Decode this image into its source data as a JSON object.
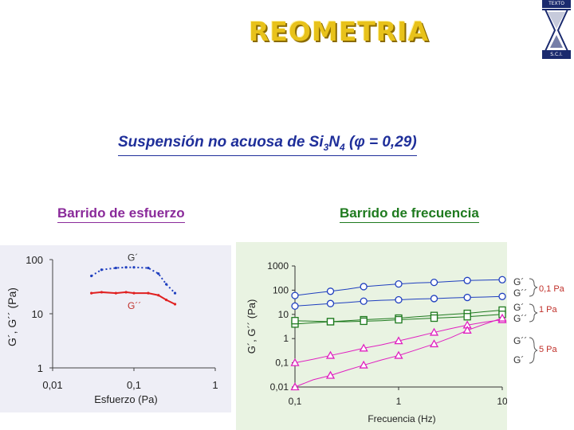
{
  "slide": {
    "title": "REOMETRIA",
    "logo_top": "TEXTO",
    "logo_bottom": "S.C.I.",
    "subtitle_main": "Suspensión no acuosa de Si",
    "subtitle_sub3": "3",
    "subtitle_n": "N",
    "subtitle_sub4": "4",
    "subtitle_tail": " (φ = 0,29)",
    "section_left": "Barrido de esfuerzo",
    "section_right": "Barrido de frecuencia"
  },
  "colors": {
    "title": "#e8c21a",
    "blue": "#1f3fbf",
    "red": "#e02020",
    "green": "#1e7a1e",
    "magenta": "#e020c0",
    "black": "#000000",
    "label_red": "#c0302a"
  },
  "chart_data": [
    {
      "type": "scatter",
      "xlabel": "Esfuerzo (Pa)",
      "ylabel": "G´, G´´ (Pa)",
      "xscale": "log",
      "yscale": "log",
      "xlim": [
        0.01,
        1
      ],
      "ylim": [
        1,
        100
      ],
      "x_ticks": [
        "0,01",
        "0,1",
        "1"
      ],
      "y_ticks": [
        "1",
        "10",
        "100"
      ],
      "series": [
        {
          "name": "G´",
          "x": [
            0.03,
            0.04,
            0.06,
            0.08,
            0.1,
            0.15,
            0.2,
            0.25,
            0.32
          ],
          "y": [
            50,
            65,
            70,
            72,
            72,
            70,
            55,
            35,
            24
          ]
        },
        {
          "name": "G´´",
          "x": [
            0.03,
            0.04,
            0.06,
            0.08,
            0.1,
            0.15,
            0.2,
            0.25,
            0.32
          ],
          "y": [
            24,
            25,
            24,
            25,
            24,
            24,
            22,
            18,
            15
          ]
        }
      ]
    },
    {
      "type": "line",
      "xlabel": "Frecuencia (Hz)",
      "ylabel": "G´, G´´ (Pa)",
      "xscale": "log",
      "yscale": "log",
      "xlim": [
        0.1,
        10
      ],
      "ylim": [
        0.01,
        1000
      ],
      "x_ticks": [
        "0,1",
        "1",
        "10"
      ],
      "y_ticks": [
        "0,01",
        "0,1",
        "1",
        "10",
        "100",
        "1000"
      ],
      "series": [
        {
          "name": "G´",
          "group": "0,1 Pa",
          "marker": "circle",
          "color": "#1f3fbf",
          "x": [
            0.1,
            0.15,
            0.22,
            0.32,
            0.46,
            0.68,
            1,
            1.5,
            2.2,
            3.2,
            4.6,
            6.8,
            10
          ],
          "y": [
            60,
            75,
            90,
            110,
            140,
            160,
            180,
            200,
            210,
            230,
            250,
            260,
            270
          ]
        },
        {
          "name": "G´´",
          "group": "0,1 Pa",
          "marker": "circle",
          "color": "#1f3fbf",
          "x": [
            0.1,
            0.15,
            0.22,
            0.32,
            0.46,
            0.68,
            1,
            1.5,
            2.2,
            3.2,
            4.6,
            6.8,
            10
          ],
          "y": [
            22,
            25,
            28,
            31,
            35,
            38,
            40,
            43,
            45,
            48,
            50,
            52,
            55
          ]
        },
        {
          "name": "G´",
          "group": "1 Pa",
          "marker": "square",
          "color": "#1e7a1e",
          "x": [
            0.1,
            0.15,
            0.22,
            0.32,
            0.46,
            0.68,
            1,
            1.5,
            2.2,
            3.2,
            4.6,
            6.8,
            10
          ],
          "y": [
            4,
            4.5,
            5,
            5.5,
            6,
            6.5,
            7,
            8,
            9,
            10,
            11,
            13,
            15
          ]
        },
        {
          "name": "G´´",
          "group": "1 Pa",
          "marker": "square",
          "color": "#1e7a1e",
          "x": [
            0.1,
            0.15,
            0.22,
            0.32,
            0.46,
            0.68,
            1,
            1.5,
            2.2,
            3.2,
            4.6,
            6.8,
            10
          ],
          "y": [
            5.5,
            5.2,
            5,
            5,
            5.2,
            5.5,
            6,
            6.5,
            7,
            7.5,
            8,
            9,
            10
          ]
        },
        {
          "name": "G´´",
          "group": "5 Pa",
          "marker": "triangle",
          "color": "#e020c0",
          "x": [
            0.1,
            0.15,
            0.22,
            0.32,
            0.46,
            0.68,
            1,
            1.5,
            2.2,
            3.2,
            4.6,
            6.8,
            10
          ],
          "y": [
            0.1,
            0.14,
            0.2,
            0.28,
            0.4,
            0.55,
            0.8,
            1.2,
            1.8,
            2.6,
            3.6,
            4.8,
            6
          ]
        },
        {
          "name": "G´",
          "group": "5 Pa",
          "marker": "triangle",
          "color": "#e020c0",
          "x": [
            0.1,
            0.15,
            0.22,
            0.32,
            0.46,
            0.68,
            1,
            1.5,
            2.2,
            3.2,
            4.6,
            6.8,
            10
          ],
          "y": [
            0.01,
            0.02,
            0.03,
            0.05,
            0.08,
            0.13,
            0.2,
            0.35,
            0.6,
            1.1,
            2.2,
            4,
            7
          ]
        }
      ],
      "annotations": [
        {
          "text": "G´",
          "group": "0,1 Pa"
        },
        {
          "text": "G´´",
          "group": "0,1 Pa"
        },
        {
          "text": "0,1 Pa"
        },
        {
          "text": "G´",
          "group": "1 Pa"
        },
        {
          "text": "G´´",
          "group": "1 Pa"
        },
        {
          "text": "1 Pa"
        },
        {
          "text": "G´´",
          "group": "5 Pa"
        },
        {
          "text": "G´",
          "group": "5 Pa"
        },
        {
          "text": "5 Pa"
        }
      ]
    }
  ]
}
